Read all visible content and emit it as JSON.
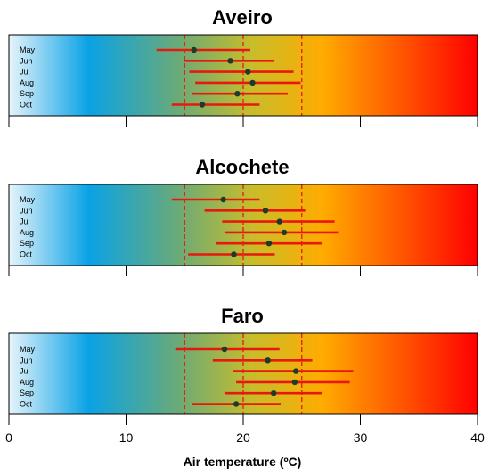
{
  "chart_data": {
    "type": "errorbar",
    "xlabel": "Air temperature (ºC)",
    "xlim": [
      0,
      40
    ],
    "xticks": [
      0,
      10,
      20,
      30,
      40
    ],
    "reference_lines": [
      15,
      20,
      25
    ],
    "colors": {
      "bar": "#e8180f",
      "point": "#1f3a2a",
      "reference": "#e8180f",
      "gradient": [
        "#e6f4fb",
        "#0aa2e6",
        "#6aaa78",
        "#c8bd2a",
        "#ffab00",
        "#ff4a00",
        "#ff0000"
      ]
    },
    "panels": [
      {
        "title": "Aveiro",
        "months": [
          "May",
          "Jun",
          "Jul",
          "Aug",
          "Sep",
          "Oct"
        ],
        "mean": [
          15.8,
          18.9,
          20.4,
          20.8,
          19.5,
          16.5
        ],
        "min": [
          12.6,
          15.0,
          15.4,
          15.9,
          15.6,
          13.9
        ],
        "max": [
          20.6,
          22.6,
          24.3,
          24.9,
          23.8,
          21.4
        ]
      },
      {
        "title": "Alcochete",
        "months": [
          "May",
          "Jun",
          "Jul",
          "Aug",
          "Sep",
          "Oct"
        ],
        "mean": [
          18.3,
          21.9,
          23.1,
          23.5,
          22.2,
          19.2
        ],
        "min": [
          13.9,
          16.7,
          18.2,
          18.4,
          17.7,
          15.3
        ],
        "max": [
          21.4,
          25.3,
          27.8,
          28.1,
          26.7,
          22.7
        ]
      },
      {
        "title": "Faro",
        "months": [
          "May",
          "Jun",
          "Jul",
          "Aug",
          "Sep",
          "Oct"
        ],
        "mean": [
          18.4,
          22.1,
          24.5,
          24.4,
          22.6,
          19.4
        ],
        "min": [
          14.2,
          17.4,
          19.1,
          19.4,
          18.4,
          15.6
        ],
        "max": [
          23.1,
          25.9,
          29.4,
          29.1,
          26.7,
          23.2
        ]
      }
    ]
  }
}
